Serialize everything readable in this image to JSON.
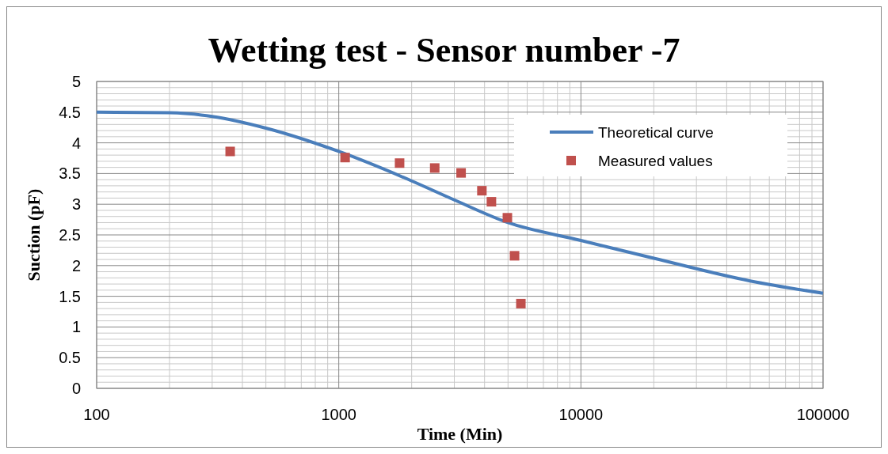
{
  "chart_data": {
    "type": "line",
    "title": "Wetting test - Sensor number -7",
    "xlabel": "Time (Min)",
    "ylabel": "Suction (pF)",
    "log": "x",
    "grid": true,
    "legend": "top right",
    "xlim": [
      100,
      100000
    ],
    "xticks": [
      100,
      1000,
      10000,
      100000
    ],
    "ylim": [
      0,
      5
    ],
    "yticks": [
      0,
      0.5,
      1,
      1.5,
      2,
      2.5,
      3,
      3.5,
      4,
      4.5,
      5
    ],
    "series": [
      {
        "name": "Theoretical curve",
        "color": "#4a7ebb",
        "marker": "none",
        "x": [
          100,
          200,
          300,
          500,
          1000,
          2000,
          3000,
          5000,
          10000,
          20000,
          50000,
          100000
        ],
        "values": [
          4.5,
          4.49,
          4.43,
          4.24,
          3.86,
          3.38,
          3.07,
          2.7,
          2.41,
          2.12,
          1.75,
          1.55
        ]
      },
      {
        "name": "Measured values",
        "type": "scatter",
        "color": "#c0504d",
        "marker": "square",
        "x": [
          356,
          1062,
          1783,
          2490,
          3200,
          3900,
          4270,
          4970,
          5320,
          5650
        ],
        "values": [
          3.86,
          3.76,
          3.67,
          3.59,
          3.51,
          3.22,
          3.04,
          2.78,
          2.16,
          1.38
        ]
      }
    ]
  }
}
